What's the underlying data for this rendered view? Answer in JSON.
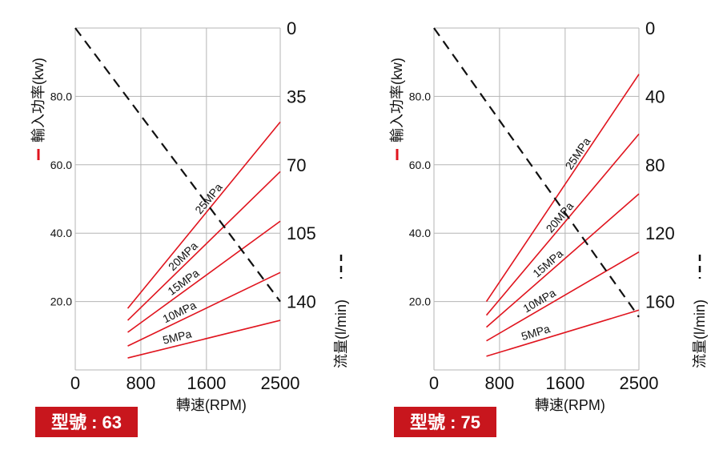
{
  "palette": {
    "power_line": "#e0141e",
    "flow_line": "#111111",
    "grid": "#b5b5b5",
    "badge": "#c8161d"
  },
  "chart_data": [
    {
      "type": "line",
      "title": "型號 : 63",
      "xlabel": "轉速(RPM)",
      "ylabel_left": "輸入功率(kw)",
      "ylabel_right": "流量(l/min)",
      "x_ticks": [
        "0",
        "800",
        "1600",
        "2500"
      ],
      "x_tick_values": [
        0,
        800,
        1600,
        2500
      ],
      "xlim": [
        0,
        2500
      ],
      "y_left_ticks": [
        "20.0",
        "40.0",
        "60.0",
        "80.0"
      ],
      "y_left_tick_values": [
        20,
        40,
        60,
        80
      ],
      "ylim_left": [
        0,
        100
      ],
      "y_right_ticks": [
        "0",
        "35",
        "70",
        "105",
        "140"
      ],
      "y_right_tick_values": [
        0,
        35,
        70,
        105,
        140
      ],
      "ylim_right": [
        0,
        175
      ],
      "right_axis_inverted": true,
      "grid": true,
      "power_series": [
        {
          "name": "25MPa",
          "x": [
            640,
            2500
          ],
          "y": [
            18,
            72.5
          ]
        },
        {
          "name": "20MPa",
          "x": [
            640,
            2500
          ],
          "y": [
            14.5,
            58
          ]
        },
        {
          "name": "15MPa",
          "x": [
            640,
            2500
          ],
          "y": [
            11,
            43.5
          ]
        },
        {
          "name": "10MPa",
          "x": [
            640,
            2500
          ],
          "y": [
            7,
            28.5
          ]
        },
        {
          "name": "5MPa",
          "x": [
            640,
            2500
          ],
          "y": [
            3.5,
            14.5
          ]
        }
      ],
      "flow_series": {
        "x": [
          0,
          2500
        ],
        "y": [
          0,
          140
        ]
      }
    },
    {
      "type": "line",
      "title": "型號 : 75",
      "xlabel": "轉速(RPM)",
      "ylabel_left": "輸入功率(kw)",
      "ylabel_right": "流量(l/min)",
      "x_ticks": [
        "0",
        "800",
        "1600",
        "2500"
      ],
      "x_tick_values": [
        0,
        800,
        1600,
        2500
      ],
      "xlim": [
        0,
        2500
      ],
      "y_left_ticks": [
        "20.0",
        "40.0",
        "60.0",
        "80.0"
      ],
      "y_left_tick_values": [
        20,
        40,
        60,
        80
      ],
      "ylim_left": [
        0,
        100
      ],
      "y_right_ticks": [
        "0",
        "40",
        "80",
        "120",
        "160"
      ],
      "y_right_tick_values": [
        0,
        40,
        80,
        120,
        160
      ],
      "ylim_right": [
        0,
        200
      ],
      "right_axis_inverted": true,
      "grid": true,
      "power_series": [
        {
          "name": "25MPa",
          "x": [
            640,
            2500
          ],
          "y": [
            20,
            86.5
          ]
        },
        {
          "name": "20MPa",
          "x": [
            640,
            2500
          ],
          "y": [
            16,
            69
          ]
        },
        {
          "name": "15MPa",
          "x": [
            640,
            2500
          ],
          "y": [
            12.5,
            51.5
          ]
        },
        {
          "name": "10MPa",
          "x": [
            640,
            2500
          ],
          "y": [
            8.5,
            34.5
          ]
        },
        {
          "name": "5MPa",
          "x": [
            640,
            2500
          ],
          "y": [
            4,
            17.5
          ]
        }
      ],
      "flow_series": {
        "x": [
          0,
          2500
        ],
        "y": [
          0,
          169
        ]
      }
    }
  ]
}
